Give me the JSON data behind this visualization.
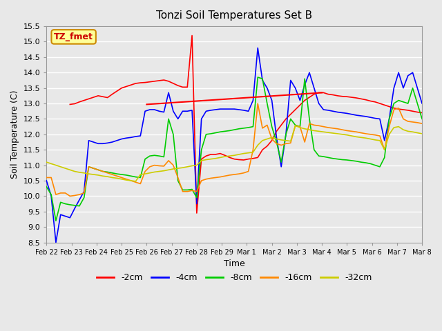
{
  "title": "Tonzi Soil Temperatures Set B",
  "xlabel": "Time",
  "ylabel": "Soil Temperature (C)",
  "ylim": [
    8.5,
    15.5
  ],
  "yticks": [
    8.5,
    9.0,
    9.5,
    10.0,
    10.5,
    11.0,
    11.5,
    12.0,
    12.5,
    13.0,
    13.5,
    14.0,
    14.5,
    15.0,
    15.5
  ],
  "legend_labels": [
    "-2cm",
    "-4cm",
    "-8cm",
    "-16cm",
    "-32cm"
  ],
  "legend_colors": [
    "#ff0000",
    "#0000ff",
    "#00cc00",
    "#ff8800",
    "#cccc00"
  ],
  "annotation_label": "TZ_fmet",
  "annotation_color": "#cc0000",
  "annotation_bg": "#ffff99",
  "annotation_border": "#cc8800",
  "xtick_positions": [
    0,
    1,
    2,
    3,
    4,
    5,
    6,
    7,
    8,
    9,
    10,
    11,
    12,
    13,
    14,
    15
  ],
  "xtick_labels": [
    "Feb 22",
    "Feb 23",
    "Feb 24",
    "Feb 25",
    "Feb 26",
    "Feb 27",
    "Feb 28",
    "Feb 29",
    "Mar 1",
    "Mar 2",
    "Mar 3",
    "Mar 4",
    "Mar 5",
    "Mar 6",
    "Mar 7",
    "Mar 8"
  ],
  "series": {
    "neg2cm": [
      null,
      null,
      null,
      null,
      null,
      12.97,
      12.99,
      13.05,
      13.1,
      13.15,
      13.2,
      13.25,
      13.22,
      13.19,
      13.3,
      13.4,
      13.5,
      13.55,
      13.6,
      13.65,
      13.67,
      13.68,
      13.7,
      13.72,
      13.74,
      13.76,
      13.72,
      13.65,
      13.58,
      13.53,
      13.53,
      15.2,
      9.45,
      11.2,
      11.3,
      11.35,
      11.35,
      11.38,
      11.32,
      11.25,
      11.2,
      11.18,
      11.17,
      11.2,
      11.22,
      11.25,
      11.5,
      11.62,
      11.8,
      12.1,
      12.3,
      12.5,
      12.65,
      12.8,
      12.95,
      13.1,
      13.2,
      13.3,
      13.35,
      13.35,
      13.3,
      13.28,
      13.25,
      13.23,
      13.22,
      13.2,
      13.18,
      13.15,
      13.12,
      13.08,
      13.05,
      13.0,
      12.95,
      12.9,
      12.85,
      12.82,
      12.8,
      12.78,
      12.75,
      12.72,
      12.7
    ],
    "neg4cm": [
      10.5,
      10.0,
      8.5,
      9.4,
      9.35,
      9.3,
      9.6,
      9.88,
      10.15,
      11.8,
      11.75,
      11.7,
      11.7,
      11.72,
      11.75,
      11.8,
      11.85,
      11.88,
      11.9,
      11.93,
      11.95,
      12.75,
      12.8,
      12.8,
      12.75,
      12.72,
      13.35,
      12.75,
      12.5,
      12.75,
      12.75,
      12.78,
      9.75,
      12.5,
      12.75,
      12.78,
      12.8,
      12.82,
      12.82,
      12.82,
      12.82,
      12.8,
      12.78,
      12.75,
      13.1,
      14.8,
      13.75,
      13.5,
      13.1,
      11.9,
      10.95,
      12.0,
      13.75,
      13.5,
      13.1,
      13.6,
      14.0,
      13.5,
      13.0,
      12.8,
      12.78,
      12.75,
      12.72,
      12.7,
      12.68,
      12.65,
      12.62,
      12.6,
      12.58,
      12.55,
      12.52,
      12.5,
      11.8,
      12.5,
      13.5,
      14.0,
      13.5,
      13.9,
      14.0,
      13.5,
      13.0
    ],
    "neg8cm": [
      10.3,
      10.05,
      9.2,
      9.8,
      9.75,
      9.72,
      9.7,
      9.68,
      9.95,
      10.95,
      10.9,
      10.85,
      10.8,
      10.78,
      10.75,
      10.72,
      10.7,
      10.68,
      10.65,
      10.62,
      10.6,
      11.2,
      11.3,
      11.32,
      11.3,
      11.27,
      12.5,
      12.0,
      10.5,
      10.2,
      10.2,
      10.22,
      9.95,
      11.5,
      12.0,
      12.02,
      12.05,
      12.08,
      12.1,
      12.12,
      12.15,
      12.18,
      12.2,
      12.22,
      12.25,
      13.85,
      13.8,
      13.0,
      12.25,
      11.75,
      11.1,
      12.0,
      12.5,
      12.3,
      12.25,
      13.8,
      12.5,
      11.5,
      11.3,
      11.28,
      11.25,
      11.22,
      11.2,
      11.18,
      11.17,
      11.15,
      11.13,
      11.1,
      11.08,
      11.05,
      11.0,
      10.95,
      11.25,
      12.5,
      13.0,
      13.1,
      13.05,
      13.0,
      13.5,
      13.0,
      12.5
    ],
    "neg16cm": [
      10.6,
      10.6,
      10.05,
      10.1,
      10.1,
      10.0,
      10.02,
      10.05,
      10.1,
      10.95,
      10.9,
      10.85,
      10.8,
      10.75,
      10.7,
      10.65,
      10.6,
      10.55,
      10.5,
      10.45,
      10.4,
      10.8,
      10.95,
      11.0,
      10.98,
      10.97,
      11.15,
      11.0,
      10.6,
      10.15,
      10.15,
      10.18,
      10.15,
      10.5,
      10.55,
      10.58,
      10.6,
      10.62,
      10.65,
      10.68,
      10.7,
      10.72,
      10.75,
      10.8,
      11.5,
      13.0,
      12.2,
      12.3,
      11.85,
      11.7,
      11.65,
      11.7,
      11.72,
      12.28,
      12.25,
      11.75,
      12.35,
      12.3,
      12.28,
      12.25,
      12.22,
      12.2,
      12.18,
      12.15,
      12.12,
      12.1,
      12.08,
      12.05,
      12.02,
      12.0,
      11.98,
      11.95,
      11.5,
      12.25,
      12.8,
      12.85,
      12.5,
      12.42,
      12.4,
      12.38,
      12.35
    ],
    "neg32cm": [
      11.1,
      11.05,
      11.0,
      10.95,
      10.9,
      10.85,
      10.8,
      10.77,
      10.75,
      10.72,
      10.7,
      10.68,
      10.65,
      10.63,
      10.6,
      10.58,
      10.55,
      10.52,
      10.5,
      10.48,
      10.7,
      10.72,
      10.75,
      10.78,
      10.8,
      10.82,
      10.85,
      10.88,
      10.9,
      10.92,
      10.95,
      10.98,
      11.0,
      11.15,
      11.18,
      11.2,
      11.22,
      11.25,
      11.28,
      11.3,
      11.32,
      11.35,
      11.38,
      11.4,
      11.42,
      11.65,
      11.8,
      11.85,
      11.9,
      11.85,
      11.82,
      11.8,
      11.78,
      12.28,
      12.22,
      12.18,
      12.15,
      12.12,
      12.1,
      12.08,
      12.06,
      12.04,
      12.02,
      12.0,
      11.98,
      11.95,
      11.92,
      11.9,
      11.88,
      11.85,
      11.82,
      11.8,
      11.5,
      12.0,
      12.22,
      12.25,
      12.15,
      12.1,
      12.08,
      12.05,
      12.02
    ]
  },
  "n_points": 81,
  "x_start": 0,
  "x_end": 15,
  "trend_x": [
    4.0,
    11.0
  ],
  "trend_y": [
    12.97,
    13.35
  ],
  "bg_color": "#e8e8e8",
  "plot_bg_color": "#e8e8e8",
  "grid_color": "#ffffff",
  "line_widths": [
    1.2,
    1.2,
    1.2,
    1.2,
    1.2
  ]
}
